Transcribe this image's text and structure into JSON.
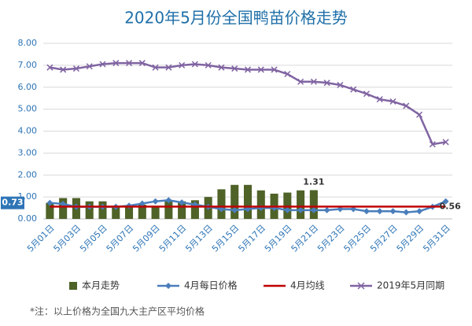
{
  "chart_data": {
    "type": "combo",
    "title": "2020年5月份全国鸭苗价格走势",
    "note": "*注：以上价格为全国九大主产区平均价格",
    "categories": [
      "5月01日",
      null,
      "5月03日",
      null,
      "5月05日",
      null,
      "5月07日",
      null,
      "5月09日",
      null,
      "5月11日",
      null,
      "5月13日",
      null,
      "5月15日",
      null,
      "5月17日",
      null,
      "5月19日",
      null,
      "5月21日",
      null,
      "5月23日",
      null,
      "5月25日",
      null,
      "5月27日",
      null,
      "5月29日",
      null,
      "5月31日"
    ],
    "ylim": [
      0,
      8
    ],
    "yticks": [
      {
        "value": 0,
        "label": "0.00"
      },
      {
        "value": 1,
        "label": "1.00"
      },
      {
        "value": 2,
        "label": "2.00"
      },
      {
        "value": 3,
        "label": "3.00"
      },
      {
        "value": 4,
        "label": "4.00"
      },
      {
        "value": 5,
        "label": "5.00"
      },
      {
        "value": 6,
        "label": "6.00"
      },
      {
        "value": 7,
        "label": "7.00"
      },
      {
        "value": 8,
        "label": "8.00"
      }
    ],
    "grid": true,
    "legend": "bottom",
    "series": [
      {
        "name": "本月走势",
        "kind": "bar",
        "color": "#4f6228",
        "values": [
          0.73,
          0.95,
          0.95,
          0.8,
          0.8,
          0.6,
          0.6,
          0.65,
          0.6,
          0.8,
          0.8,
          0.85,
          1.0,
          1.35,
          1.55,
          1.55,
          1.3,
          1.15,
          1.2,
          1.3,
          1.31,
          null,
          null,
          null,
          null,
          null,
          null,
          null,
          null,
          null,
          null
        ],
        "value_labels": [
          "0.73",
          null,
          null,
          null,
          null,
          null,
          null,
          null,
          null,
          null,
          null,
          null,
          null,
          null,
          null,
          null,
          null,
          null,
          null,
          null,
          "1.31",
          null,
          null,
          null,
          null,
          null,
          null,
          null,
          null,
          null,
          null
        ]
      },
      {
        "name": "4月每日价格",
        "kind": "line",
        "marker": "diamond",
        "color": "#4a7ebb",
        "values": [
          0.73,
          0.68,
          0.55,
          0.55,
          0.55,
          0.55,
          0.6,
          0.7,
          0.8,
          0.85,
          0.75,
          0.65,
          0.55,
          0.45,
          0.4,
          0.45,
          0.5,
          0.5,
          0.4,
          0.4,
          0.4,
          0.4,
          0.45,
          0.45,
          0.35,
          0.35,
          0.35,
          0.3,
          0.35,
          0.55,
          0.8
        ]
      },
      {
        "name": "4月均线",
        "kind": "line",
        "color": "#c00000",
        "values": [
          0.56,
          0.56,
          0.56,
          0.56,
          0.56,
          0.56,
          0.56,
          0.56,
          0.56,
          0.56,
          0.56,
          0.56,
          0.56,
          0.56,
          0.56,
          0.56,
          0.56,
          0.56,
          0.56,
          0.56,
          0.56,
          0.56,
          0.56,
          0.56,
          0.56,
          0.56,
          0.56,
          0.56,
          0.56,
          0.56,
          0.56
        ],
        "value_labels": [
          null,
          null,
          null,
          null,
          null,
          null,
          null,
          null,
          null,
          null,
          null,
          null,
          null,
          null,
          null,
          null,
          null,
          null,
          null,
          null,
          null,
          null,
          null,
          null,
          null,
          null,
          null,
          null,
          null,
          null,
          "0.56"
        ]
      },
      {
        "name": "2019年5月同期",
        "kind": "line",
        "marker": "x",
        "color": "#8064a2",
        "values": [
          6.9,
          6.8,
          6.85,
          6.95,
          7.05,
          7.1,
          7.1,
          7.1,
          6.9,
          6.9,
          7.0,
          7.05,
          7.0,
          6.9,
          6.85,
          6.8,
          6.8,
          6.8,
          6.6,
          6.25,
          6.25,
          6.2,
          6.1,
          5.9,
          5.7,
          5.45,
          5.35,
          5.15,
          4.75,
          3.4,
          3.5
        ]
      }
    ]
  }
}
